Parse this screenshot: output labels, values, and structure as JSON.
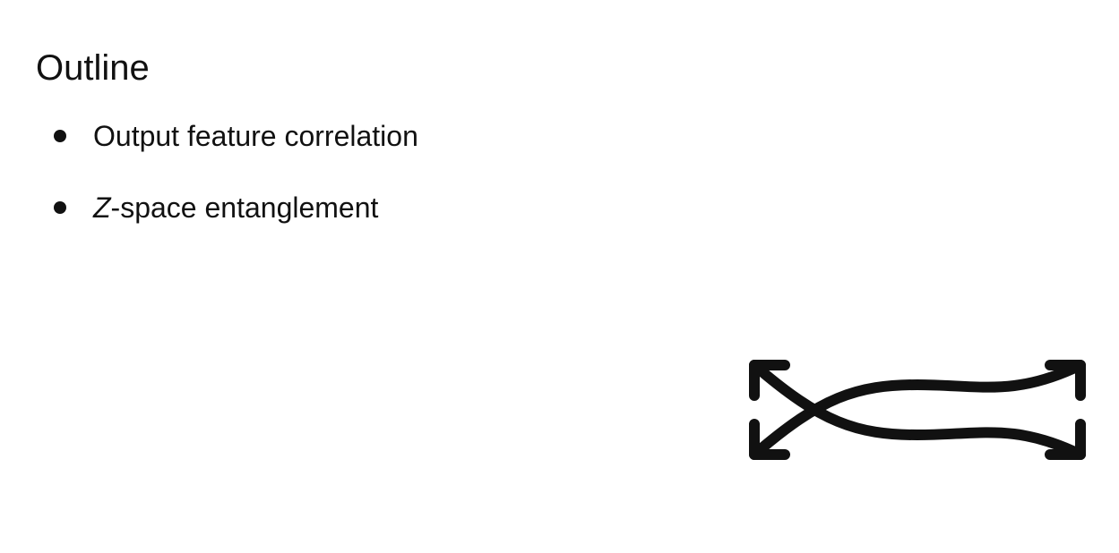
{
  "slide": {
    "title": "Outline",
    "bullets": [
      {
        "text": "Output feature correlation"
      },
      {
        "variable": "Z",
        "text": "-space entanglement"
      }
    ],
    "icons": {
      "entanglement": "crossed-curved-arrows-icon"
    },
    "colors": {
      "background": "#ffffff",
      "text": "#111111"
    }
  }
}
